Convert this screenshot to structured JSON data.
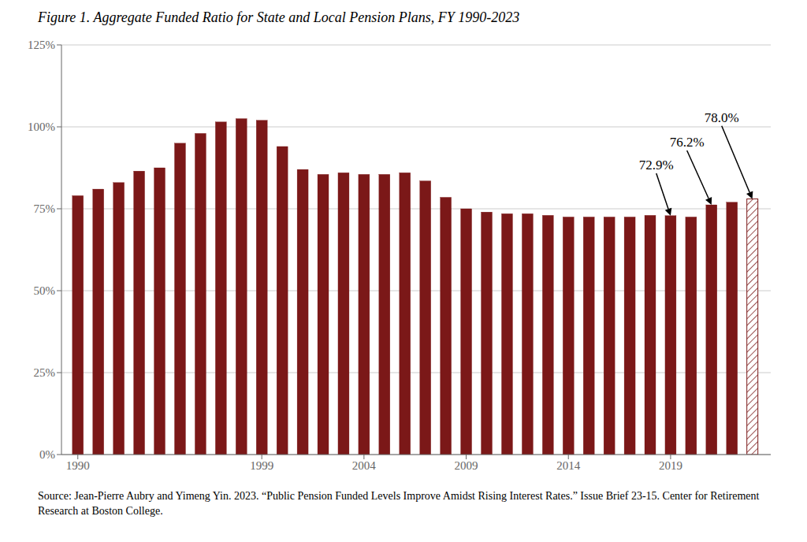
{
  "chart_data": {
    "type": "bar",
    "title": "Figure 1. Aggregate Funded Ratio for State and Local Pension Plans, FY 1990-2023",
    "x": [
      1990,
      1991,
      1992,
      1993,
      1994,
      1995,
      1996,
      1997,
      1998,
      1999,
      2000,
      2001,
      2002,
      2003,
      2004,
      2005,
      2006,
      2007,
      2008,
      2009,
      2010,
      2011,
      2012,
      2013,
      2014,
      2015,
      2016,
      2017,
      2018,
      2019,
      2020,
      2021,
      2022,
      2023
    ],
    "values": [
      79.0,
      81.0,
      83.0,
      86.5,
      87.5,
      95.0,
      98.0,
      101.5,
      102.5,
      102.0,
      94.0,
      87.0,
      85.5,
      86.0,
      85.5,
      85.5,
      86.0,
      83.5,
      78.5,
      75.0,
      74.0,
      73.5,
      73.5,
      73.0,
      72.5,
      72.5,
      72.5,
      72.5,
      73.0,
      72.9,
      72.5,
      76.2,
      77.0,
      78.0
    ],
    "color": "#7B1818",
    "xlim": [
      1989.2,
      2023.9
    ],
    "xticks": [
      1990,
      1999,
      2004,
      2009,
      2014,
      2019
    ],
    "ylim": [
      0,
      125
    ],
    "yticks": [
      {
        "value": 0,
        "label": "0%"
      },
      {
        "value": 25,
        "label": "25%"
      },
      {
        "value": 50,
        "label": "50%"
      },
      {
        "value": 75,
        "label": "75%"
      },
      {
        "value": 100,
        "label": "100%"
      },
      {
        "value": 125,
        "label": "125%"
      }
    ],
    "grid": true,
    "annotations": [
      {
        "text": "72.9%",
        "x": 2019,
        "y": 72.9,
        "text_x": 2018.3,
        "text_y": 87.0
      },
      {
        "text": "76.2%",
        "x": 2021,
        "y": 76.2,
        "text_x": 2019.8,
        "text_y": 94.0
      },
      {
        "text": "78.0%",
        "x": 2023,
        "y": 78.0,
        "text_x": 2021.5,
        "text_y": 101.5
      }
    ],
    "source": "Source: Jean-Pierre Aubry and Yimeng Yin. 2023. “Public Pension Funded Levels Improve Amidst Rising Interest Rates.” Issue Brief 23-15. Center for Retirement Research at Boston College."
  }
}
